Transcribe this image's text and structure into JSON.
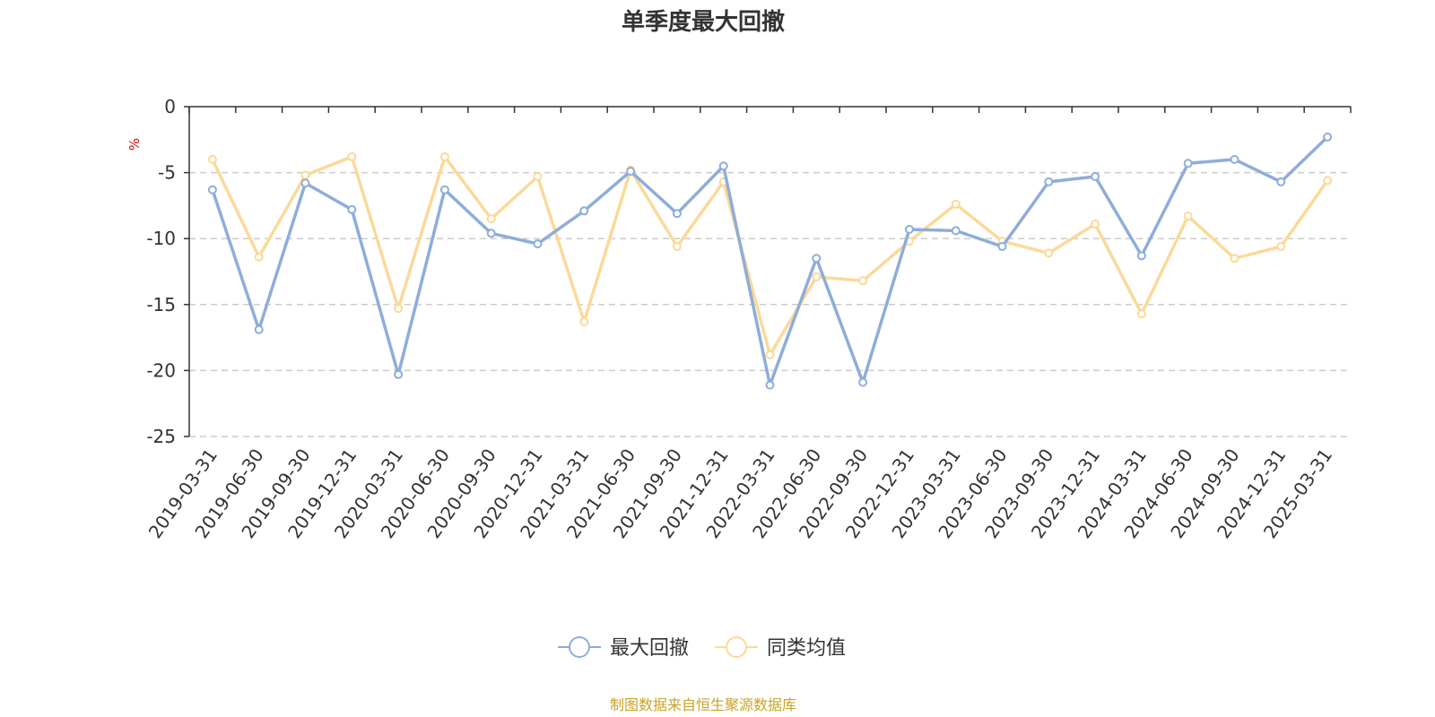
{
  "chart_data": {
    "type": "line",
    "title": "单季度最大回撤",
    "ylabel": "%",
    "ylim": [
      -25,
      0
    ],
    "yticks": [
      0,
      -5,
      -10,
      -15,
      -20,
      -25
    ],
    "grid": true,
    "legend_position": "bottom",
    "categories": [
      "2019-03-31",
      "2019-06-30",
      "2019-09-30",
      "2019-12-31",
      "2020-03-31",
      "2020-06-30",
      "2020-09-30",
      "2020-12-31",
      "2021-03-31",
      "2021-06-30",
      "2021-09-30",
      "2021-12-31",
      "2022-03-31",
      "2022-06-30",
      "2022-09-30",
      "2022-12-31",
      "2023-03-31",
      "2023-06-30",
      "2023-09-30",
      "2023-12-31",
      "2024-03-31",
      "2024-06-30",
      "2024-09-30",
      "2024-12-31",
      "2025-03-31"
    ],
    "series": [
      {
        "name": "最大回撤",
        "color": "#8eadd9",
        "values": [
          -6.3,
          -16.9,
          -5.8,
          -7.8,
          -20.3,
          -6.3,
          -9.6,
          -10.4,
          -7.9,
          -4.9,
          -8.1,
          -4.5,
          -21.1,
          -11.5,
          -20.9,
          -9.3,
          -9.4,
          -10.6,
          -5.7,
          -5.3,
          -11.3,
          -4.3,
          -4.0,
          -5.7,
          -2.3
        ]
      },
      {
        "name": "同类均值",
        "color": "#fbd999",
        "values": [
          -4.0,
          -11.4,
          -5.2,
          -3.8,
          -15.3,
          -3.8,
          -8.5,
          -5.3,
          -16.3,
          -4.8,
          -10.6,
          -5.7,
          -18.8,
          -12.9,
          -13.2,
          -10.2,
          -7.4,
          -10.2,
          -11.1,
          -8.9,
          -15.7,
          -8.3,
          -11.5,
          -10.6,
          -5.6
        ]
      }
    ],
    "source": "制图数据来自恒生聚源数据库"
  }
}
